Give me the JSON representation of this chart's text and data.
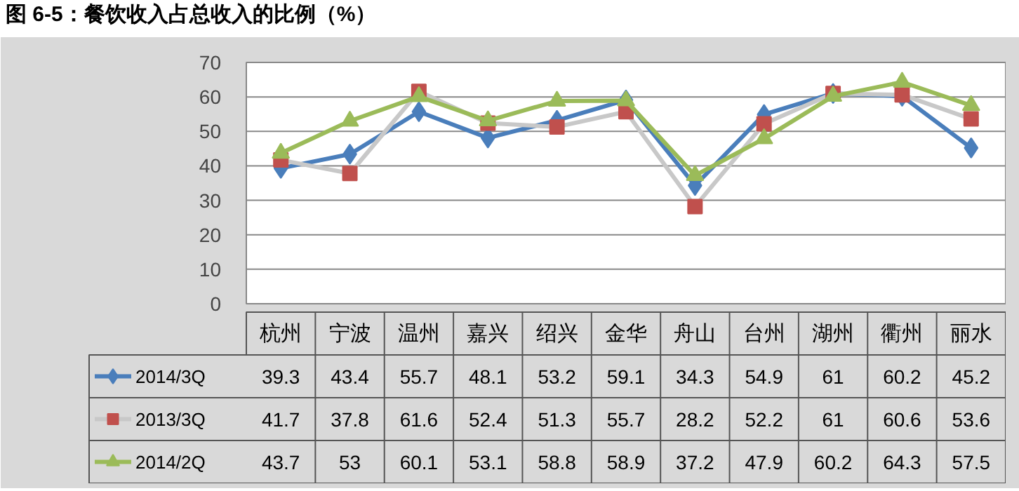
{
  "chart_data": {
    "type": "line",
    "title": "图 6-5：餐饮收入占总收入的比例（%）",
    "categories": [
      "杭州",
      "宁波",
      "温州",
      "嘉兴",
      "绍兴",
      "金华",
      "舟山",
      "台州",
      "湖州",
      "衢州",
      "丽水"
    ],
    "series": [
      {
        "name": "2014/3Q",
        "color": "#4a7ebb",
        "marker": "diamond",
        "values": [
          39.3,
          43.4,
          55.7,
          48.1,
          53.2,
          59.1,
          34.3,
          54.9,
          61,
          60.2,
          45.2
        ]
      },
      {
        "name": "2013/3Q",
        "color": "#c8c8c8",
        "colors": [
          "#c0504d",
          "#c0504d",
          "#c0504d",
          "#c0504d",
          "#c0504d",
          "#c0504d",
          "#c0504d",
          "#c0504d",
          "#c0504d",
          "#c0504d",
          "#c0504d"
        ],
        "marker": "square",
        "values": [
          41.7,
          37.8,
          61.6,
          52.4,
          51.3,
          55.7,
          28.2,
          52.2,
          61,
          60.6,
          53.6
        ]
      },
      {
        "name": "2014/2Q",
        "color": "#9bbb59",
        "marker": "triangle",
        "values": [
          43.7,
          53,
          60.1,
          53.1,
          58.8,
          58.9,
          37.2,
          47.9,
          60.2,
          64.3,
          57.5
        ]
      }
    ],
    "ylim": [
      0,
      70
    ],
    "yticks": [
      0,
      10,
      20,
      30,
      40,
      50,
      60,
      70
    ],
    "grid": "y",
    "legend": "bottom",
    "data_labels": true
  }
}
